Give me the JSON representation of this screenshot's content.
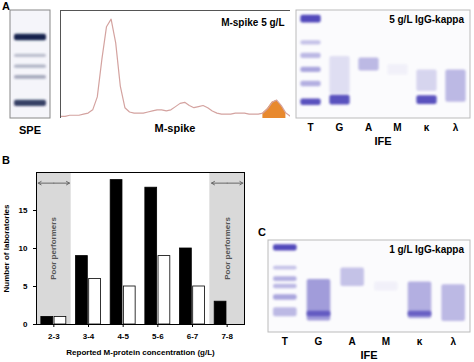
{
  "panel_labels": [
    "A",
    "B",
    "C"
  ],
  "spe": {
    "caption": "SPE"
  },
  "ife": [
    {
      "title": "5 g/L IgG-kappa",
      "lanes": [
        "T",
        "G",
        "A",
        "M",
        "κ",
        "λ"
      ],
      "caption": "IFE"
    },
    {
      "title": "1 g/L IgG-kappa",
      "lanes": [
        "T",
        "G",
        "A",
        "M",
        "κ",
        "λ"
      ],
      "caption": "IFE"
    }
  ],
  "chart_data": [
    {
      "type": "area",
      "title": "M-spike 5 g/L",
      "x_label": "M-spike",
      "x": [
        0,
        2,
        4,
        6,
        8,
        10,
        12,
        14,
        16,
        18,
        20,
        22,
        24,
        26,
        28,
        30,
        32,
        34,
        36,
        38,
        40,
        42,
        44,
        46,
        48,
        50,
        52,
        54,
        56,
        58,
        60,
        62,
        64,
        66,
        68,
        70,
        72,
        74,
        76,
        78,
        80,
        82,
        84,
        86,
        88,
        90,
        92,
        94,
        96,
        98,
        100
      ],
      "series": [
        {
          "color": "#d4a3a0",
          "values": [
            2,
            2,
            3,
            3,
            3,
            4,
            5,
            8,
            20,
            55,
            85,
            92,
            70,
            30,
            10,
            6,
            5,
            5,
            5,
            6,
            7,
            8,
            8,
            7,
            8,
            11,
            14,
            15,
            12,
            10,
            11,
            12,
            10,
            7,
            5,
            4,
            4,
            4,
            5,
            5,
            5,
            4,
            4,
            4,
            5,
            9,
            15,
            17,
            12,
            5,
            2
          ]
        }
      ],
      "highlight": {
        "range": [
          88,
          98
        ],
        "color": "#e8892e"
      },
      "xlim": [
        0,
        100
      ],
      "ylim": [
        0,
        100
      ],
      "tick_labels": false
    },
    {
      "type": "bar",
      "categories": [
        "2-3",
        "3-4",
        "4-5",
        "5-6",
        "6-7",
        "7-8"
      ],
      "series": [
        {
          "color": "#000000",
          "values": [
            1,
            9,
            19,
            18,
            10,
            3
          ]
        },
        {
          "color": "#ffffff",
          "values": [
            1,
            6,
            5,
            9,
            5,
            0
          ]
        }
      ],
      "x_label": "Reported M-protein concentration (g/L)",
      "y_label": "Number of laboratories",
      "ylim": [
        0,
        20
      ],
      "yticks": [
        0,
        5,
        10,
        15
      ],
      "grid": false,
      "annotations": [
        {
          "text": "Poor performers",
          "category": "2-3",
          "color": "#d9d9d9"
        },
        {
          "text": "Poor performers",
          "category": "7-8",
          "color": "#d9d9d9"
        }
      ]
    }
  ]
}
